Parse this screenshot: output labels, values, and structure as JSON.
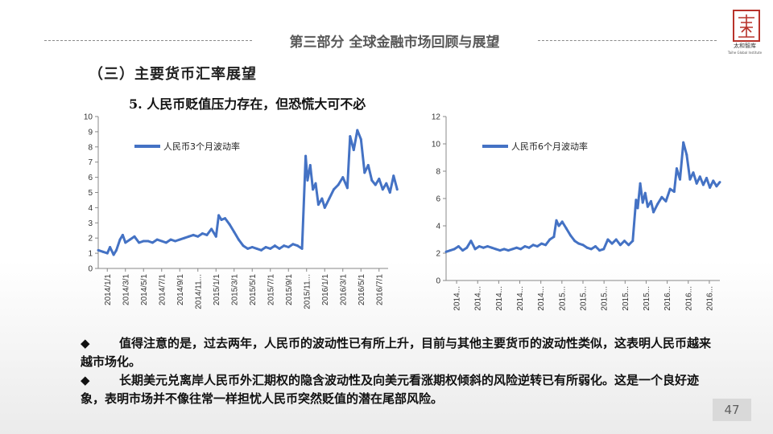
{
  "header": {
    "section_title": "第三部分  全球金融市场回顾与展望",
    "logo_text": "太和智库",
    "logo_sub": "Taihe Global Institute"
  },
  "subheading": "（三）主要货币汇率展望",
  "point_title": "5.  人民币贬值压力存在，但恐慌大可不必",
  "bullets": [
    {
      "mark": "◆",
      "text": "值得注意的是，过去两年，人民币的波动性已有所上升，目前与其他主要货币的波动性类似，这表明人民币越来越市场化。"
    },
    {
      "mark": "◆",
      "text": "长期美元兑离岸人民币外汇期权的隐含波动性及向美元看涨期权倾斜的风险逆转已有所弱化。这是一个良好迹象，表明市场并不像往常一样担忧人民币突然贬值的潜在尾部风险。"
    }
  ],
  "page_number": "47",
  "colors": {
    "series": "#4472c4",
    "logo": "#b8332b"
  },
  "chart_data": [
    {
      "type": "line",
      "legend": "人民币3个月波动率",
      "legend_position": "top-left",
      "ylim": [
        0,
        10
      ],
      "yticks": [
        0,
        1,
        2,
        3,
        4,
        5,
        6,
        7,
        8,
        9,
        10
      ],
      "xticks": [
        "2014/1/1",
        "2014/3/1",
        "2014/5/1",
        "2014/7/1",
        "2014/9/1",
        "2014/11...",
        "2015/1/1",
        "2015/3/1",
        "2015/5/1",
        "2015/7/1",
        "2015/9/1",
        "2015/11...",
        "2016/1/1",
        "2016/3/1",
        "2016/5/1",
        "2016/7/1"
      ],
      "xlim": [
        0,
        32
      ],
      "grid": false,
      "x": [
        0,
        0.5,
        1,
        1.3,
        1.7,
        2,
        2.4,
        2.7,
        3,
        3.5,
        4,
        4.5,
        5,
        5.5,
        6,
        6.5,
        7,
        7.5,
        8,
        8.5,
        9,
        9.5,
        10,
        10.5,
        11,
        11.5,
        12,
        12.5,
        13,
        13.3,
        13.6,
        14,
        14.5,
        15,
        15.5,
        16,
        16.5,
        17,
        17.5,
        18,
        18.5,
        19,
        19.5,
        20,
        20.5,
        21,
        21.5,
        22,
        22.5,
        22.9,
        23.1,
        23.4,
        23.7,
        24,
        24.3,
        24.7,
        25,
        25.5,
        26,
        26.5,
        27,
        27.5,
        27.8,
        28.2,
        28.6,
        29,
        29.4,
        29.8,
        30.2,
        30.6,
        31,
        31.4,
        31.8,
        32.2,
        32.6,
        33
      ],
      "y": [
        1.2,
        1.1,
        1.0,
        1.4,
        0.9,
        1.2,
        1.9,
        2.2,
        1.7,
        1.9,
        2.1,
        1.7,
        1.8,
        1.8,
        1.7,
        1.9,
        1.8,
        1.7,
        1.9,
        1.8,
        1.9,
        2.0,
        2.1,
        2.2,
        2.1,
        2.3,
        2.2,
        2.6,
        2.1,
        3.5,
        3.2,
        3.3,
        2.9,
        2.4,
        1.9,
        1.5,
        1.3,
        1.4,
        1.3,
        1.2,
        1.4,
        1.3,
        1.5,
        1.3,
        1.5,
        1.4,
        1.6,
        1.5,
        1.3,
        7.4,
        5.8,
        6.8,
        5.2,
        5.6,
        4.2,
        4.6,
        4.0,
        4.6,
        5.2,
        5.5,
        6.0,
        5.3,
        8.7,
        7.8,
        9.1,
        8.5,
        6.3,
        6.8,
        5.8,
        5.5,
        5.9,
        5.2,
        5.6,
        5.0,
        6.1,
        5.2
      ]
    },
    {
      "type": "line",
      "legend": "人民币6个月波动率",
      "legend_position": "top-left",
      "ylim": [
        0,
        12
      ],
      "yticks": [
        0,
        2,
        4,
        6,
        8,
        10,
        12
      ],
      "xticks": [
        "2014...",
        "2014...",
        "2014...",
        "2014...",
        "2014...",
        "2015...",
        "2015...",
        "2015...",
        "2015...",
        "2015...",
        "2016...",
        "2016...",
        "2016..."
      ],
      "xlim": [
        0,
        33
      ],
      "grid": false,
      "x": [
        0,
        0.5,
        1,
        1.5,
        2,
        2.5,
        3,
        3.5,
        4,
        4.5,
        5,
        5.5,
        6,
        6.5,
        7,
        7.5,
        8,
        8.5,
        9,
        9.5,
        10,
        10.5,
        11,
        11.5,
        12,
        12.5,
        13,
        13.3,
        13.6,
        14,
        14.5,
        15,
        15.5,
        16,
        16.5,
        17,
        17.5,
        18,
        18.5,
        19,
        19.5,
        20,
        20.5,
        21,
        21.5,
        22,
        22.5,
        22.9,
        23.1,
        23.4,
        23.7,
        24,
        24.3,
        24.7,
        25,
        25.5,
        26,
        26.5,
        27,
        27.5,
        27.8,
        28.2,
        28.6,
        29,
        29.4,
        29.8,
        30.2,
        30.6,
        31,
        31.4,
        31.8,
        32.2,
        32.6,
        33
      ],
      "y": [
        2.1,
        2.2,
        2.3,
        2.5,
        2.2,
        2.4,
        2.9,
        2.3,
        2.5,
        2.4,
        2.5,
        2.4,
        2.3,
        2.2,
        2.3,
        2.2,
        2.3,
        2.4,
        2.3,
        2.5,
        2.4,
        2.6,
        2.5,
        2.7,
        2.6,
        3.0,
        3.2,
        4.4,
        4.0,
        4.3,
        3.8,
        3.3,
        2.9,
        2.7,
        2.6,
        2.4,
        2.3,
        2.5,
        2.2,
        2.3,
        3.0,
        2.7,
        3.0,
        2.6,
        2.9,
        2.6,
        2.9,
        5.9,
        5.3,
        7.1,
        5.7,
        6.4,
        5.4,
        5.8,
        5.0,
        5.6,
        6.1,
        5.8,
        6.7,
        6.5,
        8.2,
        7.4,
        10.1,
        9.2,
        7.4,
        7.9,
        7.1,
        7.6,
        7.0,
        7.5,
        6.8,
        7.3,
        6.9,
        7.2
      ]
    }
  ]
}
